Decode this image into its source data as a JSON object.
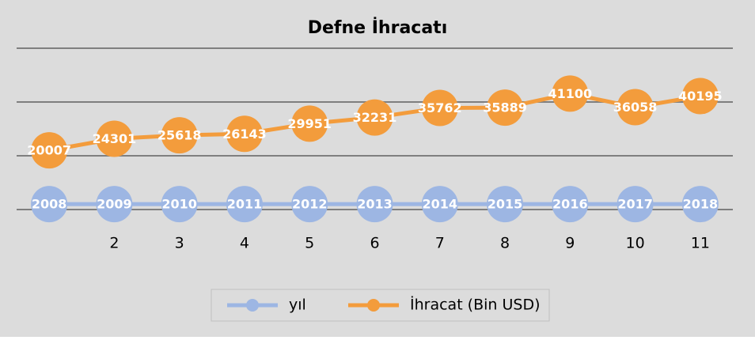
{
  "chart_data": {
    "type": "line",
    "stacked": true,
    "title": "Defne İhracatı",
    "categories": [
      null,
      "2",
      "3",
      "4",
      "5",
      "6",
      "7",
      "8",
      "9",
      "10",
      "11"
    ],
    "series": [
      {
        "name": "yıl",
        "color": "#9db6e3",
        "values": [
          2008,
          2009,
          2010,
          2011,
          2012,
          2013,
          2014,
          2015,
          2016,
          2017,
          2018
        ]
      },
      {
        "name": "İhracat (Bin USD)",
        "color": "#f39c3c",
        "values": [
          20007,
          24301,
          25618,
          26143,
          29951,
          32231,
          35762,
          35889,
          41100,
          36058,
          40195
        ]
      }
    ],
    "ylim": [
      0,
      60000
    ],
    "yticks": [
      0,
      20000,
      40000,
      60000
    ],
    "grid": true,
    "legend": "bottom"
  }
}
